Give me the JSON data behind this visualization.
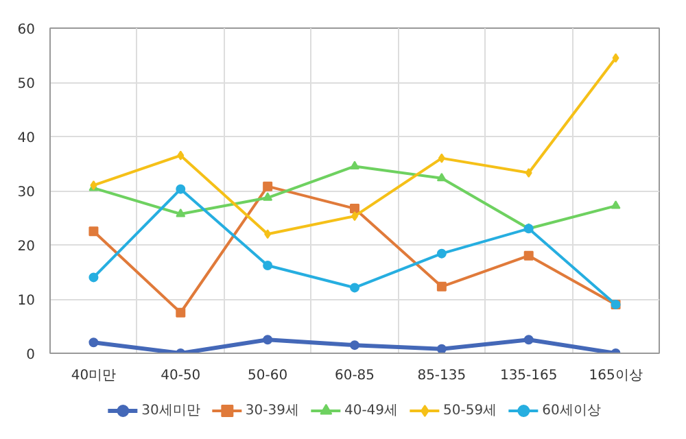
{
  "chart_data": {
    "type": "line",
    "categories": [
      "40미만",
      "40-50",
      "50-60",
      "60-85",
      "85-135",
      "135-165",
      "165이상"
    ],
    "series": [
      {
        "name": "30세미만",
        "color": "#4468b8",
        "marker": "circle",
        "values": [
          2,
          0,
          2.5,
          1.5,
          0.8,
          2.5,
          0
        ]
      },
      {
        "name": "30-39세",
        "color": "#e07a3a",
        "marker": "square",
        "values": [
          22.5,
          7.5,
          30.8,
          26.7,
          12.3,
          18,
          9
        ]
      },
      {
        "name": "40-49세",
        "color": "#6ed160",
        "marker": "triangle",
        "values": [
          30.5,
          25.7,
          28.7,
          34.5,
          32.3,
          23,
          27.2
        ]
      },
      {
        "name": "50-59세",
        "color": "#f5c018",
        "marker": "diamond",
        "values": [
          31,
          36.5,
          22,
          25.3,
          36,
          33.3,
          54.5
        ]
      },
      {
        "name": "60세이상",
        "color": "#26aee0",
        "marker": "circle",
        "values": [
          14,
          30.3,
          16.2,
          12.1,
          18.4,
          23,
          9
        ]
      }
    ],
    "ylim": [
      0,
      60
    ],
    "yticks": [
      0,
      10,
      20,
      30,
      40,
      50,
      60
    ],
    "grid": true,
    "legend": "bottom"
  }
}
